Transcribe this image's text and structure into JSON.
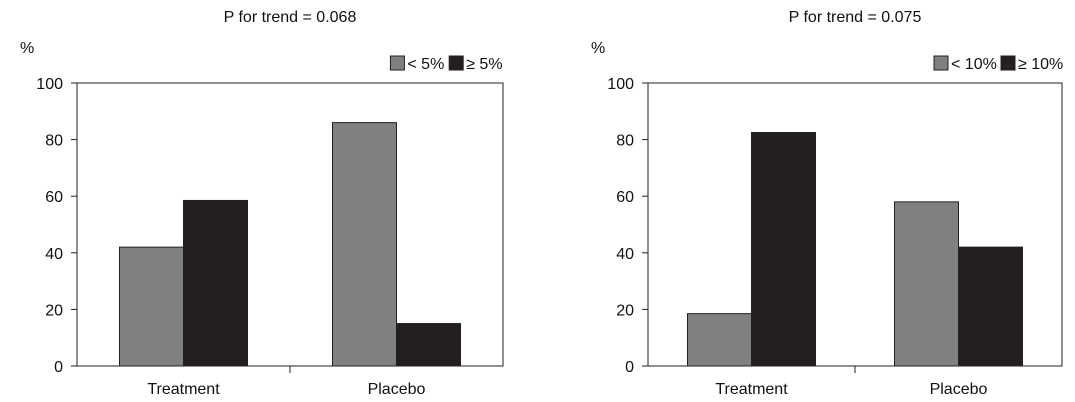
{
  "colors": {
    "series_1": "#808083",
    "series_2": "#231f20",
    "axis": "#231f20",
    "background": "#ffffff"
  },
  "chart_data": [
    {
      "type": "bar",
      "title": "P for trend = 0.068",
      "ylabel": "%",
      "xlabel": "",
      "ylim": [
        0,
        100
      ],
      "yticks": [
        0,
        20,
        40,
        60,
        80,
        100
      ],
      "grid": false,
      "legend_position": "top-right",
      "categories": [
        "Treatment",
        "Placebo"
      ],
      "series": [
        {
          "name": "< 5%",
          "color": "#808083",
          "values": [
            42,
            86
          ]
        },
        {
          "name": "≥ 5%",
          "color": "#231f20",
          "values": [
            58.5,
            15
          ]
        }
      ]
    },
    {
      "type": "bar",
      "title": "P for trend = 0.075",
      "ylabel": "%",
      "xlabel": "",
      "ylim": [
        0,
        100
      ],
      "yticks": [
        0,
        20,
        40,
        60,
        80,
        100
      ],
      "grid": false,
      "legend_position": "top-right",
      "categories": [
        "Treatment",
        "Placebo"
      ],
      "series": [
        {
          "name": "< 10%",
          "color": "#808083",
          "values": [
            18.5,
            58
          ]
        },
        {
          "name": "≥ 10%",
          "color": "#231f20",
          "values": [
            82.5,
            42
          ]
        }
      ]
    }
  ]
}
